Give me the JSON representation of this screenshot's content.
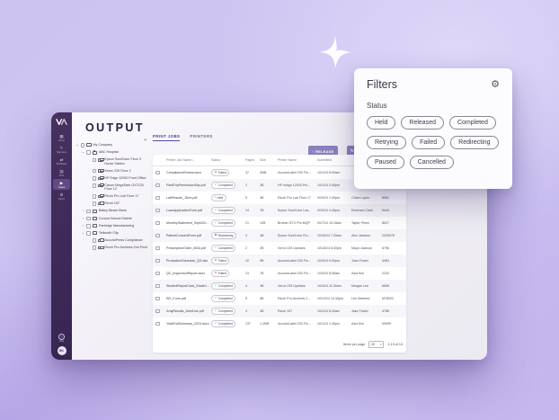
{
  "colors": {
    "accent": "#5b4aa0",
    "sidebar_bg": "#3e2a58",
    "button_bg": "#8b80bd",
    "status": {
      "Completed": "#2f9e5a",
      "Failed": "#d04a3d",
      "Held": "#e3a93c",
      "Redirecting": "#4f5b8f"
    }
  },
  "sidebar": {
    "logo": "VA",
    "items": [
      {
        "label": "Home",
        "icon": "grid-icon",
        "glyph": "▦",
        "active": false
      },
      {
        "label": "Signature",
        "icon": "signature-icon",
        "glyph": "✎",
        "active": false
      },
      {
        "label": "Workflows",
        "icon": "workflows-icon",
        "glyph": "⇄",
        "active": false
      },
      {
        "label": "Print",
        "icon": "printer-icon",
        "glyph": "▤",
        "active": false
      },
      {
        "label": "Output",
        "icon": "output-icon",
        "glyph": "▶",
        "active": true
      },
      {
        "label": "Admin",
        "icon": "admin-icon",
        "glyph": "⚙",
        "active": false
      }
    ],
    "help": {
      "glyph": "?",
      "label": "Help"
    },
    "avatar": "BK"
  },
  "header": {
    "app_title": "OUTPUT"
  },
  "tabs": [
    {
      "label": "PRINT JOBS",
      "active": true
    },
    {
      "label": "PRINTERS",
      "active": false
    }
  ],
  "tree": {
    "collapse_icon": "«",
    "root": {
      "label": "My Company",
      "type": "folder",
      "depth": 0,
      "chevron": "⌄"
    },
    "nodes": [
      {
        "label": "ABC Hospital",
        "type": "folder",
        "depth": 1,
        "chevron": "⌄"
      },
      {
        "label": "Epson SureColor Floor 3 Nurse Station",
        "type": "printer",
        "depth": 2,
        "chevron": ""
      },
      {
        "label": "Xerox 225 Floor 2",
        "type": "printer",
        "depth": 2,
        "chevron": ""
      },
      {
        "label": "HP Edge 12000 Front Office",
        "type": "printer",
        "depth": 2,
        "chevron": ""
      },
      {
        "label": "Canon MegaTank GX7120 Floor 12",
        "type": "printer",
        "depth": 2,
        "chevron": ""
      },
      {
        "label": "Ricoh Pro Lab Floor 17",
        "type": "printer",
        "depth": 2,
        "chevron": ""
      },
      {
        "label": "Ricoh 107",
        "type": "printer",
        "depth": 2,
        "chevron": ""
      },
      {
        "label": "Bailey Beach Bank",
        "type": "folder",
        "depth": 1,
        "chevron": "›"
      },
      {
        "label": "Corona School District",
        "type": "folder",
        "depth": 1,
        "chevron": "›"
      },
      {
        "label": "Partridge Manufacturing",
        "type": "folder",
        "depth": 1,
        "chevron": "›"
      },
      {
        "label": "Tellworth City",
        "type": "folder",
        "depth": 1,
        "chevron": "⌄"
      },
      {
        "label": "AccurioPress Compliance",
        "type": "printer",
        "depth": 2,
        "chevron": ""
      },
      {
        "label": "Ricoh Pro Archives 2nd Floor",
        "type": "printer",
        "depth": 2,
        "chevron": ""
      }
    ]
  },
  "toolbar": {
    "release_label": "RELEASE",
    "release_icon": "↑",
    "retry_label": "RETRY",
    "retry_icon": "↻"
  },
  "table": {
    "columns": [
      "",
      "Printer Job Name",
      "Status",
      "Pages",
      "Size",
      "Printer Name",
      "Submitted",
      "",
      ""
    ],
    "sort_icon": "↓",
    "status_icons": {
      "Completed": "✓",
      "Failed": "⊘",
      "Held": "‖",
      "Redirecting": "⇄"
    },
    "rows": [
      {
        "name": "ComplianceReview.docx",
        "status": "Failed",
        "pages": "37",
        "size": "3MB",
        "printer": "AccurioLabel 230 Flo...",
        "submitted": "10/1/24 8:00am",
        "by": "",
        "id": ""
      },
      {
        "name": "FieldTripPermissionSlip.pdf",
        "status": "Completed",
        "pages": "2",
        "size": "2B",
        "printer": "HP Indigo 12000 Pro...",
        "submitted": "10/1/24 2:05pm",
        "by": "",
        "id": ""
      },
      {
        "name": "LabResults_JDoe.pdf",
        "status": "Held",
        "pages": "5",
        "size": "4B",
        "printer": "Ricoh Pro Lab Floor 17",
        "submitted": "9/29/24 1:30pm",
        "by": "Chloe Lopez",
        "id": "8081"
      },
      {
        "name": "LoanApplicationForm.pdf",
        "status": "Completed",
        "pages": "14",
        "size": "7B",
        "printer": "Epson SureColor Las...",
        "submitted": "9/29/24 4:45pm",
        "by": "Emerson Clark",
        "id": "9444"
      },
      {
        "name": "MonthlyStatement_Sept202...",
        "status": "Completed",
        "pages": "21",
        "size": "12B",
        "printer": "Brother GTX Pro MQP",
        "submitted": "9/27/24 10:15am",
        "by": "Taylor Perez",
        "id": "8027"
      },
      {
        "name": "PatientConsentForm.pdf",
        "status": "Redirecting",
        "pages": "4",
        "size": "4B",
        "printer": "Epson SureColor Flo...",
        "submitted": "10/26/24 7:25am",
        "by": "Alex Jackson",
        "id": "2326578"
      },
      {
        "name": "PrescriptionOrder_0634.pdf",
        "status": "Completed",
        "pages": "2",
        "size": "2B",
        "printer": "Xerox 225 Upstairs",
        "submitted": "10/18/24 6:30pm",
        "by": "Maya Jackson",
        "id": "6796"
      },
      {
        "name": "ProductionSchedule_Q3.xlsx",
        "status": "Failed",
        "pages": "10",
        "size": "9B",
        "printer": "AccurioLabel 230 Flo...",
        "submitted": "10/9/24 6:30pm",
        "by": "Juan Foster",
        "id": "4084"
      },
      {
        "name": "QC_InspectionReport.docx",
        "status": "Failed",
        "pages": "13",
        "size": "7B",
        "printer": "AccurioLabel 230 Flo...",
        "submitted": "10/5/24 8:55am",
        "by": "Asia Kim",
        "id": "2232"
      },
      {
        "name": "StudentReportCard_Grade1...",
        "status": "Completed",
        "pages": "4",
        "size": "4B",
        "printer": "Xerox 225 Upstairs",
        "submitted": "10/3/24 11:30am",
        "by": "Morgan Lee",
        "id": "6656"
      },
      {
        "name": "W2_Form.pdf",
        "status": "Completed",
        "pages": "5",
        "size": "5B",
        "printer": "Ricoh Pro Archives 2...",
        "submitted": "10/12/24 12:45pm",
        "by": "Lee Martinez",
        "id": "M78002"
      },
      {
        "name": "XrayResults_JohnDoe.pdf",
        "status": "Completed",
        "pages": "4",
        "size": "4B",
        "printer": "Ricoh 107",
        "submitted": "10/2/24 8:15am",
        "by": "Jake Foster",
        "id": "4788"
      },
      {
        "name": "YearEndSummary_2023.docx",
        "status": "Completed",
        "pages": "137",
        "size": "1.2MB",
        "printer": "AccurioLabel 230 Flo...",
        "submitted": "10/1/24 1:45pm",
        "by": "Asia Kim",
        "id": "99999"
      }
    ]
  },
  "pagination": {
    "label": "Items per page",
    "per_page": "20",
    "caret": "▾",
    "range": "1-13 of 13"
  },
  "filters": {
    "title": "Filters",
    "gear_icon": "⚙",
    "section": "Status",
    "chips": [
      "Held",
      "Released",
      "Completed",
      "Retrying",
      "Failed",
      "Redirecting",
      "Paused",
      "Cancelled"
    ]
  }
}
